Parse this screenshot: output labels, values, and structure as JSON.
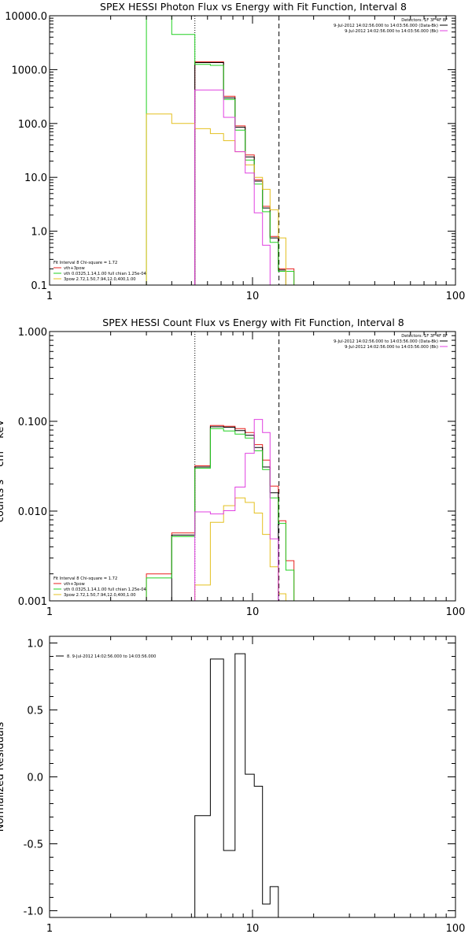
{
  "chart_data": [
    {
      "type": "line",
      "title": "SPEX HESSI Photon Flux vs Energy with Fit Function, Interval 8",
      "xscale": "log",
      "yscale": "log",
      "xlim": [
        1,
        100
      ],
      "ylim": [
        0.1,
        10000
      ],
      "xticks": [
        "1",
        "10",
        "100"
      ],
      "yticks": [
        "10000.0",
        "1000.0",
        "100.0",
        "10.0",
        "1.0",
        "0.1"
      ],
      "vlines": [
        {
          "x": 5.2,
          "style": "dotted"
        },
        {
          "x": 13.5,
          "style": "dashed"
        }
      ],
      "bin_edges": [
        3.0,
        4.0,
        5.2,
        6.2,
        7.2,
        8.2,
        9.2,
        10.2,
        11.2,
        12.2,
        13.4,
        14.6,
        16.0
      ],
      "series": [
        {
          "name": "vth+3pow",
          "color": "#e8201e",
          "values": [
            null,
            null,
            1400,
            1400,
            320,
            90,
            26,
            9,
            2.9,
            0.8,
            0.2,
            0.2
          ]
        },
        {
          "name": "",
          "color": "#000000",
          "values": [
            null,
            null,
            1350,
            1350,
            300,
            85,
            24,
            8.5,
            2.7,
            0.75,
            0.19,
            null
          ]
        },
        {
          "name": "vth 0.0325,1.14,1.00 full chian 1.25e-04",
          "color": "#22d022",
          "values": [
            12000,
            4500,
            1250,
            1200,
            280,
            75,
            21,
            7.5,
            2.3,
            0.62,
            0.18,
            0.18
          ]
        },
        {
          "name": "3pow 2.72,1.50,7.94,12.0,400,1.00",
          "color": "#e4c020",
          "values": [
            150,
            100,
            80,
            65,
            48,
            30,
            17,
            10,
            6,
            2.5,
            0.75,
            null
          ]
        },
        {
          "name": "",
          "color": "#e040e0",
          "values": [
            null,
            null,
            420,
            420,
            130,
            30,
            12,
            2.2,
            0.55,
            0.1,
            null,
            null
          ]
        }
      ],
      "legend": {
        "placement": "bottom-left",
        "header": "Fit Interval  8     Chi-square = 1.72",
        "items": [
          {
            "label": "vth+3pow",
            "color": "#e8201e"
          },
          {
            "label": "vth 0.0325,1.14,1.00  full chian 1.25e-04",
            "color": "#22d022"
          },
          {
            "label": "3pow 2.72,1.50,7.94,12.0,400,1.00",
            "color": "#e4c020"
          }
        ]
      },
      "info": {
        "placement": "top-right",
        "detectors": "Detectors: 1F 3F 4F 8F",
        "lines": [
          {
            "text": "9-Jul-2012 14:02:56.000 to 14:03:56.000 (Data-Bk)",
            "color": "#000000"
          },
          {
            "text": "9-Jul-2012 14:02:56.000 to 14:03:56.000 (Bk)",
            "color": "#e040e0"
          }
        ]
      }
    },
    {
      "type": "line",
      "title": "SPEX HESSI Count Flux vs Energy with Fit Function, Interval 8",
      "xscale": "log",
      "yscale": "log",
      "xlim": [
        1,
        100
      ],
      "ylim": [
        0.001,
        1.0
      ],
      "xticks": [
        "1",
        "10",
        "100"
      ],
      "yticks": [
        "1.000",
        "0.100",
        "0.010",
        "0.001"
      ],
      "ylabel": "counts s⁻¹ cm⁻² keV⁻¹",
      "vlines": [
        {
          "x": 5.2,
          "style": "dotted"
        },
        {
          "x": 13.5,
          "style": "dashed"
        }
      ],
      "bin_edges": [
        3.0,
        4.0,
        5.2,
        6.2,
        7.2,
        8.2,
        9.2,
        10.2,
        11.2,
        12.2,
        13.4,
        14.6,
        16.0
      ],
      "series": [
        {
          "name": "vth+3pow",
          "color": "#e8201e",
          "values": [
            0.002,
            0.0057,
            0.032,
            0.09,
            0.088,
            0.083,
            0.075,
            0.055,
            0.037,
            0.019,
            0.0078,
            0.0028
          ]
        },
        {
          "name": "",
          "color": "#000000",
          "values": [
            null,
            0.0054,
            0.031,
            0.087,
            0.086,
            0.079,
            0.07,
            0.051,
            0.031,
            0.016,
            null,
            null
          ]
        },
        {
          "name": "vth 0.0325,1.14,1.00 full chian 1.25e-04",
          "color": "#22d022",
          "values": [
            0.0018,
            0.0052,
            0.03,
            0.083,
            0.078,
            0.072,
            0.065,
            0.047,
            0.029,
            0.014,
            0.0073,
            0.0022
          ]
        },
        {
          "name": "3pow 2.72,1.50,7.94,12.0,400,1.00",
          "color": "#e4c020",
          "values": [
            null,
            null,
            0.0015,
            0.0075,
            0.0115,
            0.014,
            0.0125,
            0.0095,
            0.0055,
            0.0024,
            0.0012,
            null
          ]
        },
        {
          "name": "",
          "color": "#e040e0",
          "values": [
            null,
            null,
            0.0098,
            0.0093,
            0.0101,
            0.0185,
            0.044,
            0.105,
            0.075,
            0.0049,
            null,
            null
          ]
        }
      ],
      "legend": {
        "placement": "bottom-left",
        "header": "Fit Interval  8     Chi-square = 1.72",
        "items": [
          {
            "label": "vth+3pow",
            "color": "#e8201e"
          },
          {
            "label": "vth 0.0325,1.14,1.00  full chian 1.25e-04",
            "color": "#22d022"
          },
          {
            "label": "3pow 2.72,1.50,7.94,12.0,400,1.00",
            "color": "#e4c020"
          }
        ]
      },
      "info": {
        "placement": "top-right",
        "detectors": "Detectors: 1F 3F 4F 8F",
        "lines": [
          {
            "text": "9-Jul-2012 14:02:56.000 to 14:03:56.000 (Data-Bk)",
            "color": "#000000"
          },
          {
            "text": "9-Jul-2012 14:02:56.000 to 14:03:56.000 (Bk)",
            "color": "#e040e0"
          }
        ]
      }
    },
    {
      "type": "line",
      "title": "",
      "xscale": "log",
      "yscale": "linear",
      "xlim": [
        1,
        100
      ],
      "ylim": [
        -1.05,
        1.05
      ],
      "xticks": [
        "1",
        "10",
        "100"
      ],
      "yticks": [
        "1.0",
        "0.5",
        "0.0",
        "-0.5",
        "-1.0"
      ],
      "ylabel": "Normalized Residuals",
      "vlines": [],
      "bin_edges": [
        5.2,
        6.2,
        7.2,
        8.2,
        9.2,
        10.2,
        11.2,
        12.2,
        13.4
      ],
      "series": [
        {
          "name": "8.  9-Jul-2012 14:02:56.000 to 14:03:56.000",
          "color": "#000000",
          "values": [
            -0.29,
            0.88,
            -0.55,
            0.92,
            0.02,
            -0.07,
            -0.95,
            -0.82
          ]
        }
      ],
      "legend": {
        "placement": "top-left",
        "header": "",
        "items": [
          {
            "label": "8.  9-Jul-2012 14:02:56.000 to 14:03:56.000",
            "color": "#000000"
          }
        ]
      }
    }
  ]
}
